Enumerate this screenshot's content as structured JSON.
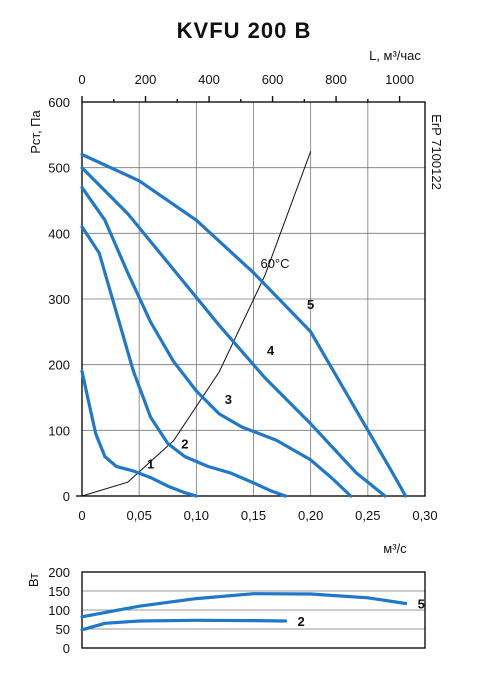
{
  "chart_data": [
    {
      "type": "line",
      "title": "KVFU 200 B",
      "xlabel": "м³/с",
      "ylabel": "Pст, Па",
      "x2label": "L, м³/час",
      "side_label": "ErP 7100122",
      "annotation": "60°C",
      "xlim": [
        0,
        0.3
      ],
      "ylim": [
        0,
        600
      ],
      "x2lim": [
        0,
        1080
      ],
      "x_ticks": [
        "0",
        "0,05",
        "0,10",
        "0,15",
        "0,20",
        "0,25",
        "0,30"
      ],
      "y_ticks": [
        "0",
        "100",
        "200",
        "300",
        "400",
        "500",
        "600"
      ],
      "x2_ticks": [
        "0",
        "200",
        "400",
        "600",
        "800",
        "1000"
      ],
      "grid": true,
      "curve_color": "#1f78c8",
      "series": [
        {
          "name": "1",
          "x": [
            0,
            0.005,
            0.012,
            0.02,
            0.03,
            0.045,
            0.06,
            0.075,
            0.09,
            0.1
          ],
          "y": [
            190,
            150,
            95,
            60,
            45,
            38,
            28,
            15,
            5,
            0
          ]
        },
        {
          "name": "2",
          "x": [
            0,
            0.015,
            0.03,
            0.045,
            0.06,
            0.075,
            0.09,
            0.11,
            0.13,
            0.15,
            0.165,
            0.178
          ],
          "y": [
            410,
            370,
            280,
            190,
            120,
            80,
            60,
            45,
            35,
            20,
            8,
            0
          ]
        },
        {
          "name": "3",
          "x": [
            0,
            0.02,
            0.04,
            0.06,
            0.08,
            0.1,
            0.12,
            0.14,
            0.17,
            0.2,
            0.22,
            0.235
          ],
          "y": [
            470,
            420,
            340,
            265,
            205,
            160,
            125,
            105,
            85,
            55,
            25,
            0
          ]
        },
        {
          "name": "4",
          "x": [
            0,
            0.04,
            0.08,
            0.12,
            0.16,
            0.2,
            0.24,
            0.265
          ],
          "y": [
            500,
            430,
            345,
            260,
            180,
            110,
            35,
            0
          ]
        },
        {
          "name": "5",
          "x": [
            0,
            0.05,
            0.1,
            0.15,
            0.2,
            0.24,
            0.27,
            0.283
          ],
          "y": [
            520,
            480,
            420,
            340,
            250,
            130,
            40,
            0
          ]
        }
      ],
      "system_curve": {
        "x": [
          0,
          0.04,
          0.08,
          0.12,
          0.16,
          0.2
        ],
        "y": [
          0,
          21,
          84,
          189,
          336,
          525
        ]
      }
    },
    {
      "type": "line",
      "ylabel": "Вт",
      "xlim": [
        0,
        0.3
      ],
      "ylim": [
        0,
        200
      ],
      "y_ticks": [
        "0",
        "50",
        "100",
        "150",
        "200"
      ],
      "grid": true,
      "series": [
        {
          "name": "5",
          "x": [
            0,
            0.05,
            0.1,
            0.15,
            0.2,
            0.25,
            0.283
          ],
          "y": [
            82,
            110,
            130,
            143,
            142,
            132,
            117
          ]
        },
        {
          "name": "2",
          "x": [
            0,
            0.02,
            0.05,
            0.1,
            0.15,
            0.178
          ],
          "y": [
            48,
            65,
            71,
            73,
            72,
            71
          ]
        }
      ]
    }
  ]
}
